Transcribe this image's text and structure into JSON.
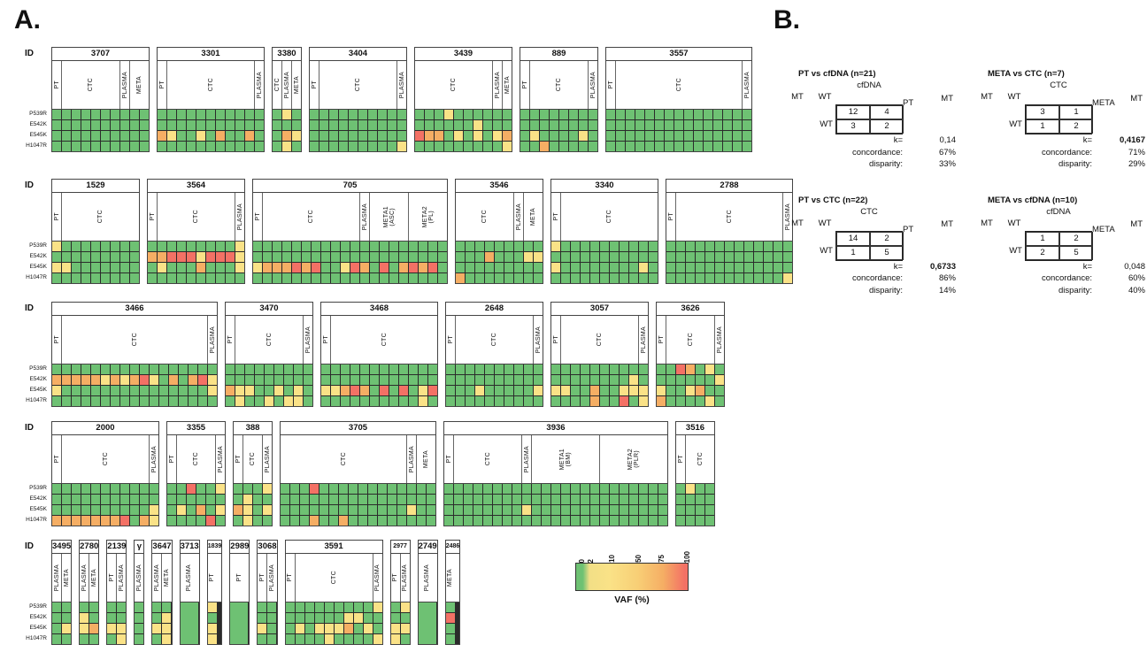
{
  "chart_data": [
    {
      "type": "heatmap",
      "panel_label": "A.",
      "id_label": "ID",
      "value_label": "VAF (%)",
      "mutations": [
        "P539R",
        "E542K",
        "E545K",
        "H1047R"
      ],
      "color_scale": {
        "classes": {
          "G": "#6EC173",
          "Y": "#FAE287",
          "O": "#F5AE64",
          "R": "#F37165"
        },
        "grid": "#2b2b2b",
        "meaning": {
          "G": "VAF ~0",
          "Y": "VAF ~2-10",
          "O": "VAF ~10-75",
          "R": "VAF ~75-100"
        }
      },
      "legend": {
        "title": "VAF (%)",
        "ticks": [
          "0",
          "2",
          "10",
          "50",
          "75",
          "100"
        ],
        "tick_pos": [
          2,
          10,
          29,
          52,
          73,
          95
        ]
      },
      "patients": [
        {
          "id": "3707",
          "row": 0,
          "groups": [
            [
              "PT",
              1
            ],
            [
              "CTC",
              6
            ],
            [
              "PLASMA",
              1
            ],
            [
              "META",
              2
            ]
          ],
          "vaf": [
            "GGGGGGGGGG",
            "GGGGGGGGGG",
            "GGGGGGGGGG",
            "GGGGGGGGGG"
          ]
        },
        {
          "id": "3301",
          "row": 0,
          "groups": [
            [
              "PT",
              1
            ],
            [
              "CTC",
              9
            ],
            [
              "PLASMA",
              1
            ]
          ],
          "vaf": [
            "GGGGGGGGGGG",
            "GGGGGGGGGGG",
            "OYGGYGOGGOG",
            "GGGGGGGGGGG"
          ]
        },
        {
          "id": "3380",
          "row": 0,
          "groups": [
            [
              "CTC",
              1
            ],
            [
              "PLASMA",
              1
            ],
            [
              "META",
              1
            ]
          ],
          "vaf": [
            "GYG",
            "GGG",
            "GOY",
            "GYG"
          ]
        },
        {
          "id": "3404",
          "row": 0,
          "groups": [
            [
              "PT",
              1
            ],
            [
              "CTC",
              8
            ],
            [
              "PLASMA",
              1
            ]
          ],
          "vaf": [
            "GGGGGGGGGG",
            "GGGGGGGGGG",
            "GGGGGGGGGG",
            "GGGGGGGGGY"
          ]
        },
        {
          "id": "3439",
          "row": 0,
          "groups": [
            [
              "CTC",
              8
            ],
            [
              "PLASMA",
              1
            ],
            [
              "META",
              1
            ]
          ],
          "vaf": [
            "GGGYGGGGGG",
            "GGGGGGYGGG",
            "ROOGYGYGYO",
            "GGGGGGGGGY"
          ]
        },
        {
          "id": "889",
          "row": 0,
          "groups": [
            [
              "PT",
              1
            ],
            [
              "CTC",
              6
            ],
            [
              "PLASMA",
              1
            ]
          ],
          "vaf": [
            "GGGGGGGG",
            "GGGGGGGG",
            "GYGGGGYG",
            "GGOGGGGG"
          ]
        },
        {
          "id": "3557",
          "row": 0,
          "groups": [
            [
              "PT",
              1
            ],
            [
              "CTC",
              13
            ],
            [
              "PLASMA",
              1
            ]
          ],
          "vaf": [
            "GGGGGGGGGGGGGGG",
            "GGGGGGGGGGGGGGG",
            "GGGGGGGGGGGGGGG",
            "GGGGGGGGGGGGGGG"
          ]
        },
        {
          "id": "1529",
          "row": 1,
          "groups": [
            [
              "PT",
              1
            ],
            [
              "CTC",
              8
            ]
          ],
          "vaf": [
            "YGGGGGGGG",
            "GGGGGGGGG",
            "YYGGGGGGG",
            "GGGGGGGGG"
          ]
        },
        {
          "id": "3564",
          "row": 1,
          "groups": [
            [
              "PT",
              1
            ],
            [
              "CTC",
              8
            ],
            [
              "PLASMA",
              1
            ]
          ],
          "vaf": [
            "GGGGGGGGGY",
            "OORRRYRRRY",
            "GYGGGOGGGY",
            "GGGGGGGGGG"
          ]
        },
        {
          "id": "705",
          "row": 1,
          "groups": [
            [
              "PT",
              1
            ],
            [
              "CTC",
              10
            ],
            [
              "PLASMA",
              1
            ],
            [
              "META1 (ASC)",
              4
            ],
            [
              "META2 (PL)",
              4
            ]
          ],
          "vaf": [
            "GGGGGGGGGGGGGGGGGGGG",
            "GGGGGGGGGGGGGGGGGGGG",
            "YOOORORGGYROGRGORORG",
            "GGGGGGGGGGGGGGGGGGGG"
          ]
        },
        {
          "id": "3546",
          "row": 1,
          "groups": [
            [
              "CTC",
              6
            ],
            [
              "PLASMA",
              1
            ],
            [
              "META",
              2
            ]
          ],
          "vaf": [
            "GGGGGGGGG",
            "GGGOGGGYY",
            "GGGGGGGGG",
            "OGGGGGGGG"
          ]
        },
        {
          "id": "3340",
          "row": 1,
          "groups": [
            [
              "PT",
              1
            ],
            [
              "CTC",
              10
            ]
          ],
          "vaf": [
            "YGGGGGGGGGG",
            "GGGGGGGGGGG",
            "YGGGGGGGGYG",
            "GGGGGGGGGGG"
          ]
        },
        {
          "id": "2788",
          "row": 1,
          "groups": [
            [
              "PT",
              1
            ],
            [
              "CTC",
              11
            ],
            [
              "PLASMA",
              1
            ]
          ],
          "vaf": [
            "GGGGGGGGGGGGG",
            "GGGGGGGGGGGGG",
            "GGGGGGGGGGGGG",
            "GGGGGGGGGGGGY"
          ]
        },
        {
          "id": "3466",
          "row": 2,
          "groups": [
            [
              "PT",
              1
            ],
            [
              "CTC",
              15
            ],
            [
              "PLASMA",
              1
            ]
          ],
          "vaf": [
            "GGGGGGGGGGGGGGGGG",
            "OOOOOYOYORYGOGORY",
            "YGGGGGGGGGGGGGGGY",
            "GGGGGGGGGGGGGGGGG"
          ]
        },
        {
          "id": "3470",
          "row": 2,
          "groups": [
            [
              "PT",
              1
            ],
            [
              "CTC",
              7
            ],
            [
              "PLASMA",
              1
            ]
          ],
          "vaf": [
            "GGGGGGGGG",
            "GGGGGGGGG",
            "OYYGGYGYG",
            "GYGGYGYYG"
          ]
        },
        {
          "id": "3468",
          "row": 2,
          "groups": [
            [
              "PT",
              1
            ],
            [
              "CTC",
              11
            ]
          ],
          "vaf": [
            "GGGGGGGGGGGG",
            "GGGGGGGGGGGG",
            "YYOROGRGRGYR",
            "GGGGGGGGGGYG"
          ]
        },
        {
          "id": "2648",
          "row": 2,
          "groups": [
            [
              "PT",
              1
            ],
            [
              "CTC",
              8
            ],
            [
              "PLASMA",
              1
            ]
          ],
          "vaf": [
            "GGGGGGGGGG",
            "GGGGGGGGGG",
            "GGGYGGGGGY",
            "GGGGGGGGGG"
          ]
        },
        {
          "id": "3057",
          "row": 2,
          "groups": [
            [
              "PT",
              1
            ],
            [
              "CTC",
              8
            ],
            [
              "PLASMA",
              1
            ]
          ],
          "vaf": [
            "GGGGGGGGGG",
            "GGGGGGGGYG",
            "YYGGOGGYYY",
            "GGGGOGGRGY"
          ]
        },
        {
          "id": "3626",
          "row": 2,
          "groups": [
            [
              "PT",
              1
            ],
            [
              "CTC",
              5
            ],
            [
              "PLASMA",
              1
            ]
          ],
          "vaf": [
            "GGROGYG",
            "GGGGGGY",
            "YGGYOGG",
            "OGGGGYG"
          ]
        },
        {
          "id": "2000",
          "row": 3,
          "groups": [
            [
              "PT",
              1
            ],
            [
              "CTC",
              9
            ],
            [
              "PLASMA",
              1
            ]
          ],
          "vaf": [
            "GGGGGGGGGGG",
            "GGGGGGGGGGG",
            "GGGGGGGGGGY",
            "OOOOOOORGOY"
          ]
        },
        {
          "id": "3355",
          "row": 3,
          "groups": [
            [
              "PT",
              1
            ],
            [
              "CTC",
              4
            ],
            [
              "PLASMA",
              1
            ]
          ],
          "vaf": [
            "GGRGGY",
            "GGGGGG",
            "GYGOGY",
            "GGGGRG"
          ]
        },
        {
          "id": "388",
          "row": 3,
          "groups": [
            [
              "PT",
              1
            ],
            [
              "CTC",
              2
            ],
            [
              "PLASMA",
              1
            ]
          ],
          "vaf": [
            "GGGY",
            "GYGG",
            "OYGY",
            "GYGG"
          ]
        },
        {
          "id": "3705",
          "row": 3,
          "groups": [
            [
              "CTC",
              13
            ],
            [
              "PLASMA",
              1
            ],
            [
              "META",
              2
            ]
          ],
          "vaf": [
            "GGGRGGGGGGGGGGGG",
            "GGGGGGGGGGGGGGGG",
            "GGGGGGGGGGGGGYGG",
            "GGGOGGOGGGGGGGGG"
          ]
        },
        {
          "id": "3936",
          "row": 3,
          "groups": [
            [
              "PT",
              1
            ],
            [
              "CTC",
              7
            ],
            [
              "PLASMA",
              1
            ],
            [
              "META1 (BM)",
              7
            ],
            [
              "META2 (PLR)",
              7
            ]
          ],
          "vaf": [
            "GGGGGGGGGGGGGGGGGGGGGGG",
            "GGGGGGGGGGGGGGGGGGGGGGG",
            "GGGGGGGGYGGGGGGGGGGGGGG",
            "GGGGGGGGGGGGGGGGGGGGGGG"
          ]
        },
        {
          "id": "3516",
          "row": 3,
          "groups": [
            [
              "PT",
              1
            ],
            [
              "CTC",
              3
            ]
          ],
          "vaf": [
            "GYGG",
            "GGGG",
            "GGGG",
            "GGGG"
          ]
        },
        {
          "id": "3495",
          "row": 4,
          "groups": [
            [
              "PLASMA",
              1
            ],
            [
              "META",
              1
            ]
          ],
          "vaf": [
            "GG",
            "GG",
            "GY",
            "GG"
          ]
        },
        {
          "id": "2780",
          "row": 4,
          "groups": [
            [
              "PLASMA",
              1
            ],
            [
              "META",
              1
            ]
          ],
          "vaf": [
            "GG",
            "YG",
            "YO",
            "GG"
          ]
        },
        {
          "id": "2139",
          "row": 4,
          "groups": [
            [
              "PT",
              1
            ],
            [
              "PLASMA",
              1
            ]
          ],
          "vaf": [
            "GG",
            "GG",
            "YY",
            "GY"
          ]
        },
        {
          "id": "γ",
          "row": 4,
          "groups": [
            [
              "PLASMA",
              1
            ]
          ],
          "vaf": [
            "G",
            "G",
            "G",
            "G"
          ]
        },
        {
          "id": "3647",
          "row": 4,
          "groups": [
            [
              "PLASMA",
              1
            ],
            [
              "META",
              1
            ]
          ],
          "vaf": [
            "GG",
            "GY",
            "YY",
            "GY"
          ]
        },
        {
          "id": "3713",
          "row": 4,
          "solid": true,
          "groups": [
            [
              "PLASMA",
              1
            ]
          ],
          "vaf": [
            "G",
            "G",
            "G",
            "G"
          ]
        },
        {
          "id": "1839",
          "row": 4,
          "id_small": true,
          "groups": [
            [
              "PT",
              1
            ]
          ],
          "vaf": [
            "Y",
            "G",
            "Y",
            "Y"
          ]
        },
        {
          "id": "2989",
          "row": 4,
          "solid": true,
          "groups": [
            [
              "PT",
              1
            ]
          ],
          "vaf": [
            "G",
            "G",
            "G",
            "G"
          ]
        },
        {
          "id": "3068",
          "row": 4,
          "groups": [
            [
              "PT",
              1
            ],
            [
              "PLASMA",
              1
            ]
          ],
          "vaf": [
            "GG",
            "GG",
            "YG",
            "GG"
          ]
        },
        {
          "id": "3591",
          "row": 4,
          "groups": [
            [
              "PT",
              1
            ],
            [
              "CTC",
              8
            ],
            [
              "PLASMA",
              1
            ]
          ],
          "vaf": [
            "GGGGGGGGGY",
            "GGGGGGYYGG",
            "GYGYYYOGYG",
            "GGGGYGGGGY"
          ]
        },
        {
          "id": "2977",
          "row": 4,
          "id_small": true,
          "groups": [
            [
              "PT",
              1
            ],
            [
              "PLASMA",
              1
            ]
          ],
          "vaf": [
            "GY",
            "GG",
            "YY",
            "YG"
          ]
        },
        {
          "id": "2749",
          "row": 4,
          "solid": true,
          "groups": [
            [
              "PLASMA",
              1
            ]
          ],
          "vaf": [
            "G",
            "G",
            "G",
            "G"
          ]
        },
        {
          "id": "2486",
          "row": 4,
          "id_small": true,
          "groups": [
            [
              "META",
              1
            ]
          ],
          "vaf": [
            "G",
            "R",
            "G",
            "G"
          ]
        }
      ]
    },
    {
      "type": "table",
      "panel_label": "B.",
      "tables": [
        {
          "title": "PT vs cfDNA (n=21)",
          "col_group": "cfDNA",
          "row_group": "PT",
          "col_headers": [
            "MT",
            "WT"
          ],
          "row_headers": [
            "MT",
            "WT"
          ],
          "values": [
            [
              "12",
              "4"
            ],
            [
              "3",
              "2"
            ]
          ],
          "k_label": "k=",
          "k": "0,14",
          "k_bold": false,
          "concordance_label": "concordance:",
          "concordance": "67%",
          "disparity_label": "disparity:",
          "disparity": "33%"
        },
        {
          "title": "META vs CTC (n=7)",
          "col_group": "CTC",
          "row_group": "META",
          "col_headers": [
            "MT",
            "WT"
          ],
          "row_headers": [
            "MT",
            "WT"
          ],
          "values": [
            [
              "3",
              "1"
            ],
            [
              "1",
              "2"
            ]
          ],
          "k_label": "k=",
          "k": "0,4167",
          "k_bold": true,
          "concordance_label": "concordance:",
          "concordance": "71%",
          "disparity_label": "disparity:",
          "disparity": "29%"
        },
        {
          "title": "PT vs CTC (n=22)",
          "col_group": "CTC",
          "row_group": "PT",
          "col_headers": [
            "MT",
            "WT"
          ],
          "row_headers": [
            "MT",
            "WT"
          ],
          "values": [
            [
              "14",
              "2"
            ],
            [
              "1",
              "5"
            ]
          ],
          "k_label": "k=",
          "k": "0,6733",
          "k_bold": true,
          "concordance_label": "concordance:",
          "concordance": "86%",
          "disparity_label": "disparity:",
          "disparity": "14%"
        },
        {
          "title": "META vs cfDNA (n=10)",
          "col_group": "cfDNA",
          "row_group": "META",
          "col_headers": [
            "MT",
            "WT"
          ],
          "row_headers": [
            "MT",
            "WT"
          ],
          "values": [
            [
              "1",
              "2"
            ],
            [
              "2",
              "5"
            ]
          ],
          "k_label": "k=",
          "k": "0,048",
          "k_bold": false,
          "concordance_label": "concordance:",
          "concordance": "60%",
          "disparity_label": "disparity:",
          "disparity": "40%"
        }
      ]
    }
  ]
}
